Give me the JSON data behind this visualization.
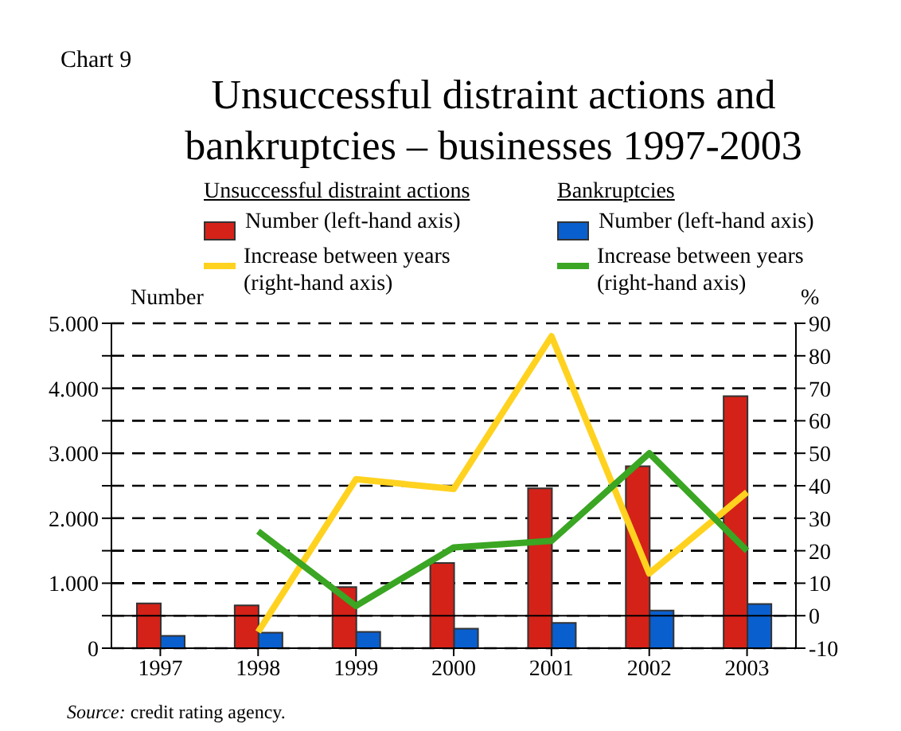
{
  "chart_data": {
    "type": "bar",
    "title": "Unsuccessful distraint actions and bankruptcies – businesses 1997-2003",
    "ylabel": "Number",
    "y2label": "%",
    "annotations": [
      "Chart 9",
      "Unsuccessful distraint actions",
      "Bankruptcies",
      "Source: credit rating agency."
    ],
    "categories": [
      "1997",
      "1998",
      "1999",
      "2000",
      "2001",
      "2002",
      "2003"
    ],
    "series": [
      {
        "name": "Number (left-hand axis)",
        "color": "#d42219",
        "values": [
          690,
          660,
          940,
          1310,
          2460,
          2800,
          3880
        ]
      },
      {
        "name": "Increase between years (right-hand axis)",
        "type": "line",
        "axis": "y2",
        "color": "#ffd21f",
        "values": [
          null,
          -5,
          42,
          39,
          86,
          13,
          38
        ]
      },
      {
        "name": "Number (left-hand axis)",
        "color": "#0a5fcf",
        "values": [
          190,
          240,
          250,
          300,
          390,
          580,
          680
        ]
      },
      {
        "name": "Increase between years (right-hand axis)",
        "type": "line",
        "axis": "y2",
        "color": "#3aa623",
        "values": [
          null,
          26,
          3,
          21,
          23,
          50,
          20
        ]
      }
    ],
    "ylim": [
      0,
      5000
    ],
    "yticks": [
      {
        "value": 0,
        "label": "0"
      },
      {
        "value": 500,
        "label": null
      },
      {
        "value": 1000,
        "label": "1.000"
      },
      {
        "value": 1500,
        "label": null
      },
      {
        "value": 2000,
        "label": "2.000"
      },
      {
        "value": 2500,
        "label": null
      },
      {
        "value": 3000,
        "label": "3.000"
      },
      {
        "value": 3500,
        "label": null
      },
      {
        "value": 4000,
        "label": "4.000"
      },
      {
        "value": 4500,
        "label": null
      },
      {
        "value": 5000,
        "label": "5.000"
      }
    ],
    "y2lim": [
      -10,
      90
    ],
    "y2ticks": [
      -10,
      0,
      10,
      20,
      30,
      40,
      50,
      60,
      70,
      80,
      90
    ],
    "ref_lines": [
      {
        "axis": "y2",
        "value": 0,
        "color": "#000000",
        "line_style": "solid"
      }
    ],
    "grid": "y",
    "legend": "top",
    "marker": "none"
  }
}
